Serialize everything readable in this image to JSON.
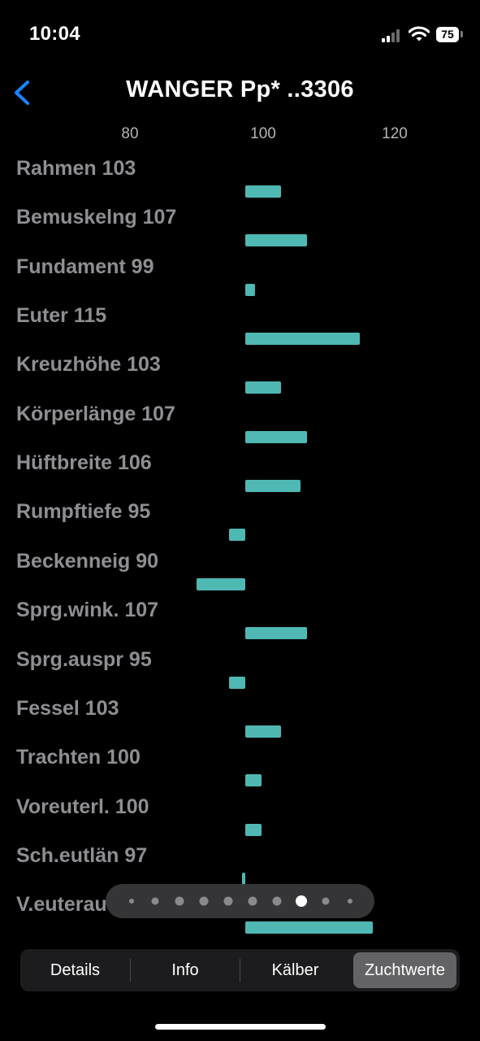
{
  "status": {
    "time": "10:04",
    "battery": "75"
  },
  "nav": {
    "title": "WANGER Pp* ..3306",
    "back_icon": "chevron-left-icon",
    "accent_color": "#1a84ff"
  },
  "chart_data": {
    "type": "bar",
    "orientation": "horizontal",
    "baseline": 97.5,
    "xticks": [
      "80",
      "100",
      "120"
    ],
    "bar_color": "#4fb8b3",
    "rows": [
      {
        "label": "Rahmen 103",
        "value": 103
      },
      {
        "label": "Bemuskelng 107",
        "value": 107
      },
      {
        "label": "Fundament 99",
        "value": 99
      },
      {
        "label": "Euter 115",
        "value": 115
      },
      {
        "label": "Kreuzhöhe 103",
        "value": 103
      },
      {
        "label": "Körperlänge 107",
        "value": 107
      },
      {
        "label": "Hüftbreite 106",
        "value": 106
      },
      {
        "label": "Rumpftiefe 95",
        "value": 95
      },
      {
        "label": "Beckenneig 90",
        "value": 90
      },
      {
        "label": "Sprg.wink. 107",
        "value": 107
      },
      {
        "label": "Sprg.auspr 95",
        "value": 95
      },
      {
        "label": "Fessel 103",
        "value": 103
      },
      {
        "label": "Trachten 100",
        "value": 100
      },
      {
        "label": "Voreuterl. 100",
        "value": 100
      },
      {
        "label": "Sch.eutlän 97",
        "value": 97
      },
      {
        "label": "V.euterau",
        "value": 117
      }
    ]
  },
  "pager": {
    "count": 10,
    "active_index": 7
  },
  "tabs": [
    {
      "label": "Details",
      "active": false
    },
    {
      "label": "Info",
      "active": false
    },
    {
      "label": "Kälber",
      "active": false
    },
    {
      "label": "Zuchtwerte",
      "active": true
    }
  ]
}
